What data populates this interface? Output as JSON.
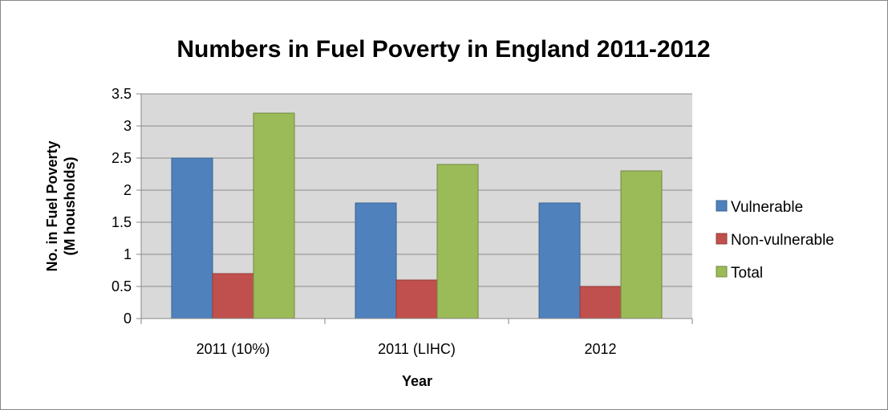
{
  "chart_data": {
    "type": "bar",
    "title": "Numbers in Fuel Poverty in England 2011-2012",
    "xlabel": "Year",
    "ylabel_lines": [
      "No. in Fuel Poverty",
      "(M housholds)"
    ],
    "categories": [
      "2011 (10%)",
      "2011 (LIHC)",
      "2012"
    ],
    "series": [
      {
        "name": "Vulnerable",
        "values": [
          2.5,
          1.8,
          1.8
        ],
        "color": "#4F81BD",
        "stroke": "#3A6494"
      },
      {
        "name": "Non-vulnerable",
        "values": [
          0.7,
          0.6,
          0.5
        ],
        "color": "#C0504D",
        "stroke": "#933B39"
      },
      {
        "name": "Total",
        "values": [
          3.2,
          2.4,
          2.3
        ],
        "color": "#9BBB59",
        "stroke": "#71893F"
      }
    ],
    "ylim": [
      0,
      3.5
    ],
    "yticks": [
      0,
      0.5,
      1,
      1.5,
      2,
      2.5,
      3,
      3.5
    ],
    "ytick_labels": [
      "0",
      "0.5",
      "1",
      "1.5",
      "2",
      "2.5",
      "3",
      "3.5"
    ],
    "grid": true,
    "legend_position": "right",
    "plot_background": "#D9D9D9"
  }
}
